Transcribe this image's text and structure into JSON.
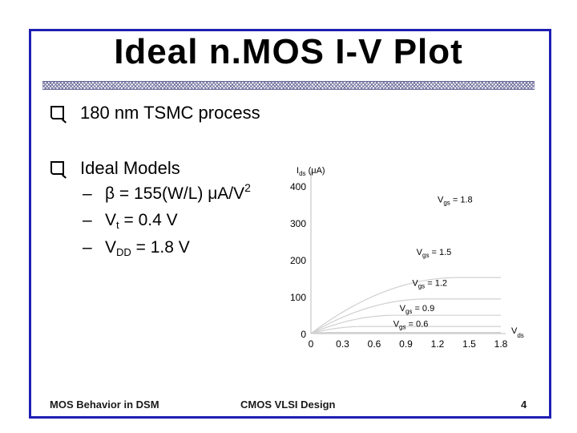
{
  "slide": {
    "title": "Ideal n.MOS I-V Plot",
    "bullets": [
      {
        "text": "180 nm TSMC process"
      },
      {
        "text": "Ideal Models"
      }
    ],
    "subitems": {
      "beta": {
        "prefix": "β = 155(W/L) μA/V",
        "sup": "2"
      },
      "vt": {
        "pre": "V",
        "sub": "t",
        "post": " = 0.4 V"
      },
      "vdd": {
        "pre": "V",
        "sub": "DD",
        "post": " = 1.8 V"
      }
    },
    "footer": {
      "left": "MOS Behavior in DSM",
      "center": "CMOS VLSI Design",
      "page": "4"
    }
  },
  "chart_data": {
    "type": "line",
    "ylabel": {
      "main": "I",
      "sub": "ds",
      "unit": " (μA)"
    },
    "xlabel": {
      "main": "V",
      "sub": "ds"
    },
    "x_ticks": [
      "0",
      "0.3",
      "0.6",
      "0.9",
      "1.2",
      "1.5",
      "1.8"
    ],
    "y_ticks": [
      "0",
      "100",
      "200",
      "300",
      "400"
    ],
    "xlim": [
      0,
      1.8
    ],
    "ylim": [
      0,
      400
    ],
    "grid": false,
    "series": [
      {
        "name": "Vgs = 1.8",
        "vgs": 1.8,
        "label_main": "V",
        "label_sub": "gs",
        "label_rest": " = 1.8",
        "color": "#d0d0d0"
      },
      {
        "name": "Vgs = 1.5",
        "vgs": 1.5,
        "label_main": "V",
        "label_sub": "gs",
        "label_rest": " = 1.5",
        "color": "#d0d0d0"
      },
      {
        "name": "Vgs = 1.2",
        "vgs": 1.2,
        "label_main": "V",
        "label_sub": "gs",
        "label_rest": " = 1.2",
        "color": "#d0d0d0"
      },
      {
        "name": "Vgs = 0.9",
        "vgs": 0.9,
        "label_main": "V",
        "label_sub": "gs",
        "label_rest": " = 0.9",
        "color": "#d0d0d0"
      },
      {
        "name": "Vgs = 0.6",
        "vgs": 0.6,
        "label_main": "V",
        "label_sub": "gs",
        "label_rest": " = 0.6",
        "color": "#d0d0d0"
      }
    ],
    "model": {
      "beta": 155,
      "vt": 0.4
    }
  }
}
